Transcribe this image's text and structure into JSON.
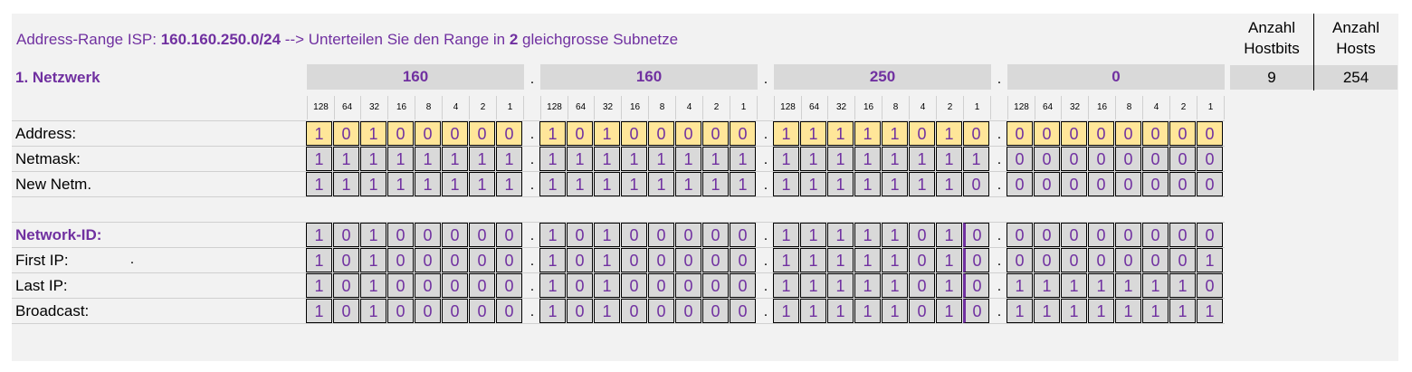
{
  "title": {
    "prefix": "Address-Range ISP: ",
    "range": "160.160.250.0/24",
    "mid": "  --> Unterteilen Sie den Range in ",
    "count": "2",
    "suffix": " gleichgrosse Subnetze"
  },
  "network_label": "1. Netzwerk",
  "octets": [
    "160",
    "160",
    "250",
    "0"
  ],
  "bit_weights": [
    "128",
    "64",
    "32",
    "16",
    "8",
    "4",
    "2",
    "1"
  ],
  "summary": {
    "hostbits_header_line1": "Anzahl",
    "hostbits_header_line2": "Hostbits",
    "hosts_header_line1": "Anzahl",
    "hosts_header_line2": "Hosts",
    "hostbits_value": "9",
    "hosts_value": "254"
  },
  "rows": [
    {
      "label": "Address:",
      "style": "addr",
      "label_purple": false,
      "bits": [
        "10100000",
        "10100000",
        "11111010",
        "00000000"
      ]
    },
    {
      "label": "Netmask:",
      "style": "gray",
      "label_purple": false,
      "bits": [
        "11111111",
        "11111111",
        "11111111",
        "00000000"
      ]
    },
    {
      "label": "New Netm.",
      "style": "gray",
      "label_purple": false,
      "bits": [
        "11111111",
        "11111111",
        "11111110",
        "00000000"
      ]
    },
    {
      "label": "Network-ID:",
      "style": "gray",
      "label_purple": true,
      "bits": [
        "10100000",
        "10100000",
        "11111010",
        "00000000"
      ]
    },
    {
      "label": "First IP:",
      "style": "gray",
      "label_purple": false,
      "bits": [
        "10100000",
        "10100000",
        "11111010",
        "00000001"
      ]
    },
    {
      "label": "Last IP:",
      "style": "gray",
      "label_purple": false,
      "bits": [
        "10100000",
        "10100000",
        "11111010",
        "11111110"
      ]
    },
    {
      "label": "Broadcast:",
      "style": "gray",
      "label_purple": false,
      "bits": [
        "10100000",
        "10100000",
        "11111010",
        "11111111"
      ]
    }
  ],
  "first_ip_dot": ".",
  "separator": "."
}
